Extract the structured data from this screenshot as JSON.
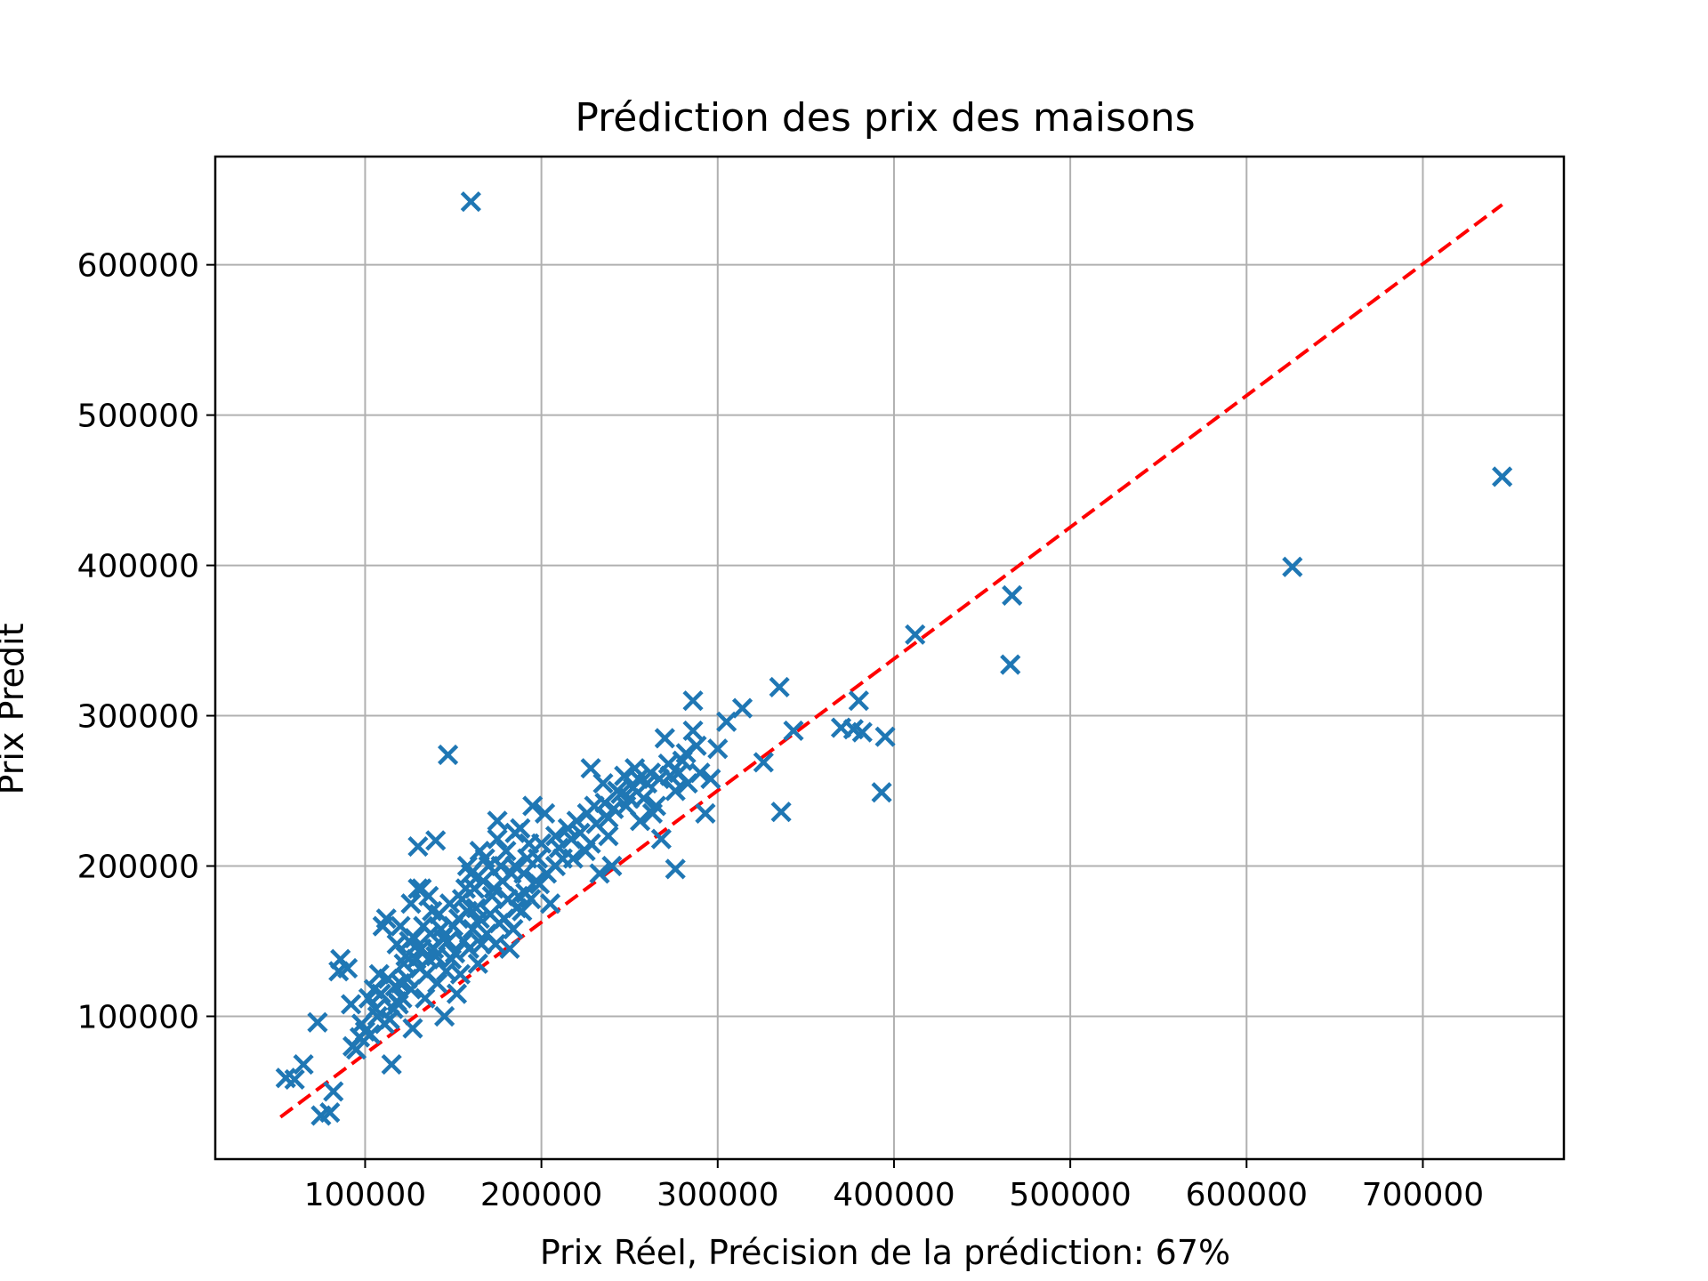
{
  "chart_data": {
    "type": "scatter",
    "title": "Prédiction des prix des maisons",
    "xlabel": "Prix Réel, Précision de la prédiction: 67%",
    "ylabel": "Prix Predit",
    "xlim": [
      15000,
      780000
    ],
    "ylim": [
      5000,
      672000
    ],
    "x_ticks": [
      100000,
      200000,
      300000,
      400000,
      500000,
      600000,
      700000
    ],
    "x_tick_labels": [
      "100000",
      "200000",
      "300000",
      "400000",
      "500000",
      "600000",
      "700000"
    ],
    "y_ticks": [
      100000,
      200000,
      300000,
      400000,
      500000,
      600000
    ],
    "y_tick_labels": [
      "100000",
      "200000",
      "300000",
      "400000",
      "500000",
      "600000"
    ],
    "grid": true,
    "marker_color": "#1f77b4",
    "marker": "x",
    "reference_line": {
      "style": "dashed",
      "color": "#ff0000",
      "x": [
        52000,
        745000
      ],
      "y": [
        33000,
        640000
      ]
    },
    "series": [
      {
        "points": [
          [
            160000,
            642000
          ],
          [
            745000,
            459000
          ],
          [
            626000,
            399000
          ],
          [
            467000,
            380000
          ],
          [
            466000,
            334000
          ],
          [
            412000,
            354000
          ],
          [
            335000,
            319000
          ],
          [
            336000,
            236000
          ],
          [
            393000,
            249000
          ],
          [
            395000,
            286000
          ],
          [
            380000,
            310000
          ],
          [
            377000,
            291000
          ],
          [
            382000,
            289000
          ],
          [
            370000,
            292000
          ],
          [
            326000,
            269000
          ],
          [
            343000,
            290000
          ],
          [
            314000,
            305000
          ],
          [
            305000,
            296000
          ],
          [
            300000,
            278000
          ],
          [
            286000,
            310000
          ],
          [
            276000,
            198000
          ],
          [
            147000,
            274000
          ],
          [
            140000,
            217000
          ],
          [
            130000,
            213000
          ],
          [
            55000,
            59000
          ],
          [
            60000,
            58000
          ],
          [
            65000,
            68000
          ],
          [
            73000,
            96000
          ],
          [
            75000,
            34000
          ],
          [
            80000,
            36000
          ],
          [
            82000,
            50000
          ],
          [
            85000,
            130000
          ],
          [
            86000,
            138000
          ],
          [
            90000,
            132000
          ],
          [
            92000,
            108000
          ],
          [
            95000,
            78000
          ],
          [
            97000,
            86000
          ],
          [
            100000,
            90000
          ],
          [
            105000,
            118000
          ],
          [
            108000,
            128000
          ],
          [
            110000,
            160000
          ],
          [
            112000,
            165000
          ],
          [
            115000,
            68000
          ],
          [
            118000,
            110000
          ],
          [
            120000,
            122000
          ],
          [
            122000,
            135000
          ],
          [
            125000,
            150000
          ],
          [
            127000,
            92000
          ],
          [
            130000,
            185000
          ],
          [
            132000,
            145000
          ],
          [
            135000,
            128000
          ],
          [
            137000,
            155000
          ],
          [
            140000,
            140000
          ],
          [
            142000,
            168000
          ],
          [
            145000,
            100000
          ],
          [
            147000,
            150000
          ],
          [
            150000,
            160000
          ],
          [
            152000,
            115000
          ],
          [
            155000,
            178000
          ],
          [
            158000,
            170000
          ],
          [
            160000,
            195000
          ],
          [
            162000,
            185000
          ],
          [
            165000,
            165000
          ],
          [
            168000,
            205000
          ],
          [
            170000,
            200000
          ],
          [
            172000,
            180000
          ],
          [
            175000,
            230000
          ],
          [
            178000,
            190000
          ],
          [
            180000,
            210000
          ],
          [
            182000,
            145000
          ],
          [
            185000,
            200000
          ],
          [
            188000,
            225000
          ],
          [
            190000,
            195000
          ],
          [
            193000,
            215000
          ],
          [
            195000,
            240000
          ],
          [
            198000,
            205000
          ],
          [
            200000,
            215000
          ],
          [
            205000,
            175000
          ],
          [
            208000,
            220000
          ],
          [
            212000,
            205000
          ],
          [
            215000,
            225000
          ],
          [
            220000,
            230000
          ],
          [
            225000,
            210000
          ],
          [
            228000,
            265000
          ],
          [
            230000,
            240000
          ],
          [
            233000,
            195000
          ],
          [
            235000,
            255000
          ],
          [
            238000,
            220000
          ],
          [
            240000,
            200000
          ],
          [
            243000,
            250000
          ],
          [
            247000,
            260000
          ],
          [
            250000,
            245000
          ],
          [
            253000,
            265000
          ],
          [
            256000,
            230000
          ],
          [
            260000,
            255000
          ],
          [
            265000,
            240000
          ],
          [
            268000,
            218000
          ],
          [
            270000,
            285000
          ],
          [
            273000,
            260000
          ],
          [
            276000,
            250000
          ],
          [
            280000,
            270000
          ],
          [
            283000,
            255000
          ],
          [
            286000,
            290000
          ],
          [
            290000,
            262000
          ],
          [
            293000,
            235000
          ],
          [
            296000,
            258000
          ],
          [
            118000,
            148000
          ],
          [
            123000,
            140000
          ],
          [
            128000,
            152000
          ],
          [
            133000,
            160000
          ],
          [
            138000,
            170000
          ],
          [
            143000,
            158000
          ],
          [
            148000,
            175000
          ],
          [
            153000,
            165000
          ],
          [
            157000,
            185000
          ],
          [
            163000,
            172000
          ],
          [
            167000,
            190000
          ],
          [
            173000,
            185000
          ],
          [
            177000,
            200000
          ],
          [
            183000,
            195000
          ],
          [
            187000,
            180000
          ],
          [
            192000,
            205000
          ],
          [
            197000,
            190000
          ],
          [
            113000,
            125000
          ],
          [
            116000,
            105000
          ],
          [
            121000,
            112000
          ],
          [
            126000,
            118000
          ],
          [
            131000,
            132000
          ],
          [
            136000,
            138000
          ],
          [
            141000,
            122000
          ],
          [
            146000,
            130000
          ],
          [
            151000,
            142000
          ],
          [
            156000,
            150000
          ],
          [
            161000,
            158000
          ],
          [
            166000,
            148000
          ],
          [
            171000,
            168000
          ],
          [
            176000,
            162000
          ],
          [
            181000,
            178000
          ],
          [
            186000,
            172000
          ],
          [
            191000,
            182000
          ],
          [
            102000,
            112000
          ],
          [
            107000,
            100000
          ],
          [
            111000,
            95000
          ],
          [
            124000,
            125000
          ],
          [
            129000,
            138000
          ],
          [
            134000,
            112000
          ],
          [
            139000,
            145000
          ],
          [
            144000,
            152000
          ],
          [
            149000,
            138000
          ],
          [
            154000,
            128000
          ],
          [
            159000,
            145000
          ],
          [
            164000,
            135000
          ],
          [
            169000,
            155000
          ],
          [
            174000,
            148000
          ],
          [
            179000,
            165000
          ],
          [
            184000,
            158000
          ],
          [
            189000,
            170000
          ],
          [
            194000,
            178000
          ],
          [
            199000,
            188000
          ],
          [
            203000,
            195000
          ],
          [
            210000,
            212000
          ],
          [
            217000,
            218000
          ],
          [
            222000,
            222000
          ],
          [
            226000,
            235000
          ],
          [
            231000,
            228000
          ],
          [
            236000,
            242000
          ],
          [
            241000,
            238000
          ],
          [
            245000,
            248000
          ],
          [
            252000,
            252000
          ],
          [
            258000,
            245000
          ],
          [
            262000,
            262000
          ],
          [
            267000,
            258000
          ],
          [
            272000,
            268000
          ],
          [
            278000,
            262000
          ],
          [
            282000,
            275000
          ],
          [
            288000,
            280000
          ],
          [
            93000,
            80000
          ],
          [
            98000,
            95000
          ],
          [
            103000,
            88000
          ],
          [
            106000,
            105000
          ],
          [
            109000,
            115000
          ],
          [
            114000,
            98000
          ],
          [
            117000,
            120000
          ],
          [
            119000,
            108000
          ],
          [
            132000,
            185000
          ],
          [
            136000,
            180000
          ],
          [
            126000,
            175000
          ],
          [
            120000,
            160000
          ],
          [
            158000,
            200000
          ],
          [
            165000,
            210000
          ],
          [
            175000,
            218000
          ],
          [
            185000,
            222000
          ],
          [
            202000,
            235000
          ],
          [
            208000,
            200000
          ],
          [
            218000,
            205000
          ],
          [
            228000,
            215000
          ],
          [
            238000,
            232000
          ],
          [
            248000,
            240000
          ],
          [
            255000,
            258000
          ],
          [
            263000,
            235000
          ]
        ]
      }
    ]
  }
}
